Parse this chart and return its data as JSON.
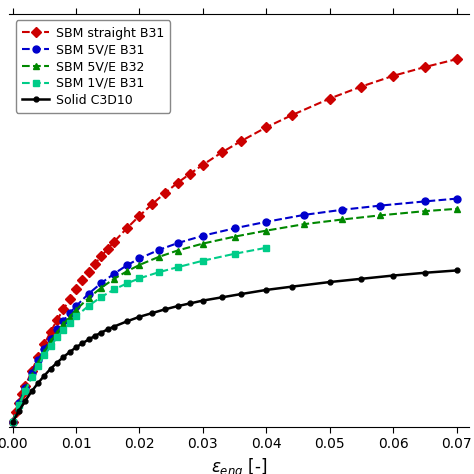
{
  "title": "",
  "xlabel": "$\\epsilon_{eng}$ [-]",
  "ylabel": "",
  "xlim": [
    -0.0005,
    0.072
  ],
  "ylim": [
    -0.01,
    0.88
  ],
  "xticks": [
    0.0,
    0.01,
    0.02,
    0.03,
    0.04,
    0.05,
    0.06,
    0.07
  ],
  "background_color": "#ffffff",
  "series": [
    {
      "label": "SBM straight B31",
      "color": "#cc0000",
      "linestyle": "--",
      "marker": "D",
      "markersize": 5,
      "linewidth": 1.5,
      "x": [
        0.0,
        0.0005,
        0.001,
        0.0015,
        0.002,
        0.003,
        0.004,
        0.005,
        0.006,
        0.007,
        0.008,
        0.009,
        0.01,
        0.011,
        0.012,
        0.013,
        0.014,
        0.015,
        0.016,
        0.018,
        0.02,
        0.022,
        0.024,
        0.026,
        0.028,
        0.03,
        0.033,
        0.036,
        0.04,
        0.044,
        0.05,
        0.055,
        0.06,
        0.065,
        0.07
      ],
      "y": [
        0.0,
        0.022,
        0.042,
        0.06,
        0.077,
        0.11,
        0.14,
        0.168,
        0.195,
        0.22,
        0.243,
        0.265,
        0.286,
        0.306,
        0.324,
        0.342,
        0.358,
        0.374,
        0.389,
        0.418,
        0.445,
        0.47,
        0.494,
        0.516,
        0.536,
        0.555,
        0.582,
        0.606,
        0.636,
        0.662,
        0.698,
        0.724,
        0.747,
        0.766,
        0.783
      ]
    },
    {
      "label": "SBM 5V/E B31",
      "color": "#0000cc",
      "linestyle": "--",
      "marker": "o",
      "markersize": 5,
      "linewidth": 1.5,
      "x": [
        0.0,
        0.001,
        0.002,
        0.003,
        0.004,
        0.005,
        0.006,
        0.007,
        0.008,
        0.009,
        0.01,
        0.012,
        0.014,
        0.016,
        0.018,
        0.02,
        0.023,
        0.026,
        0.03,
        0.035,
        0.04,
        0.046,
        0.052,
        0.058,
        0.065,
        0.07
      ],
      "y": [
        0.0,
        0.04,
        0.074,
        0.106,
        0.133,
        0.158,
        0.18,
        0.2,
        0.218,
        0.235,
        0.25,
        0.277,
        0.3,
        0.32,
        0.338,
        0.353,
        0.371,
        0.386,
        0.402,
        0.418,
        0.432,
        0.447,
        0.458,
        0.467,
        0.476,
        0.482
      ]
    },
    {
      "label": "SBM 5V/E B32",
      "color": "#008800",
      "linestyle": "--",
      "marker": "^",
      "markersize": 5,
      "linewidth": 1.5,
      "x": [
        0.0,
        0.001,
        0.002,
        0.003,
        0.004,
        0.005,
        0.006,
        0.007,
        0.008,
        0.009,
        0.01,
        0.012,
        0.014,
        0.016,
        0.018,
        0.02,
        0.023,
        0.026,
        0.03,
        0.035,
        0.04,
        0.046,
        0.052,
        0.058,
        0.065,
        0.07
      ],
      "y": [
        0.0,
        0.038,
        0.071,
        0.101,
        0.128,
        0.152,
        0.174,
        0.193,
        0.211,
        0.227,
        0.242,
        0.268,
        0.29,
        0.309,
        0.325,
        0.339,
        0.356,
        0.37,
        0.385,
        0.4,
        0.413,
        0.427,
        0.437,
        0.446,
        0.455,
        0.46
      ]
    },
    {
      "label": "SBM 1V/E B31",
      "color": "#00cc88",
      "linestyle": "--",
      "marker": "s",
      "markersize": 5,
      "linewidth": 1.5,
      "x": [
        0.0,
        0.001,
        0.002,
        0.003,
        0.004,
        0.005,
        0.006,
        0.007,
        0.008,
        0.009,
        0.01,
        0.012,
        0.014,
        0.016,
        0.018,
        0.02,
        0.023,
        0.026,
        0.03,
        0.035,
        0.04
      ],
      "y": [
        0.0,
        0.036,
        0.067,
        0.096,
        0.121,
        0.144,
        0.164,
        0.183,
        0.199,
        0.214,
        0.228,
        0.251,
        0.27,
        0.286,
        0.299,
        0.31,
        0.323,
        0.334,
        0.348,
        0.363,
        0.376
      ]
    },
    {
      "label": "Solid C3D10",
      "color": "#000000",
      "linestyle": "-",
      "marker": "o",
      "markersize": 3.5,
      "linewidth": 1.8,
      "x": [
        0.0,
        0.001,
        0.002,
        0.003,
        0.004,
        0.005,
        0.006,
        0.007,
        0.008,
        0.009,
        0.01,
        0.011,
        0.012,
        0.013,
        0.014,
        0.015,
        0.016,
        0.018,
        0.02,
        0.022,
        0.024,
        0.026,
        0.028,
        0.03,
        0.033,
        0.036,
        0.04,
        0.044,
        0.05,
        0.055,
        0.06,
        0.065,
        0.07
      ],
      "y": [
        0.0,
        0.024,
        0.046,
        0.066,
        0.084,
        0.1,
        0.115,
        0.128,
        0.14,
        0.151,
        0.161,
        0.17,
        0.178,
        0.186,
        0.193,
        0.2,
        0.206,
        0.217,
        0.227,
        0.235,
        0.243,
        0.25,
        0.256,
        0.262,
        0.269,
        0.276,
        0.285,
        0.292,
        0.302,
        0.309,
        0.316,
        0.322,
        0.327
      ]
    }
  ]
}
